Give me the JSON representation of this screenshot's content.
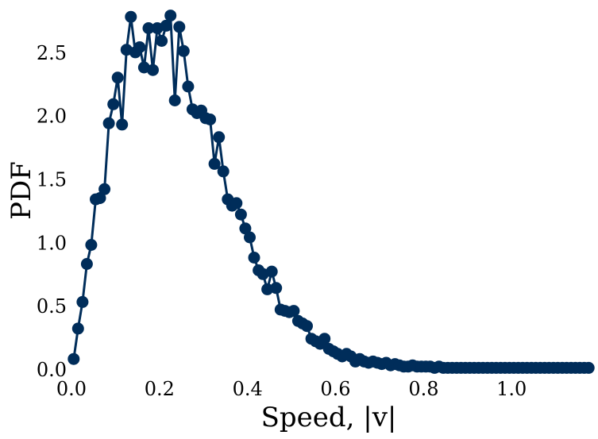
{
  "chart_data": {
    "type": "line",
    "title": "",
    "xlabel": "Speed, |v|",
    "ylabel": "PDF",
    "xlim": [
      0.0,
      1.18
    ],
    "ylim": [
      0.0,
      2.85
    ],
    "xticks": [
      "0.0",
      "0.2",
      "0.4",
      "0.6",
      "0.8",
      "1.0"
    ],
    "xtick_values": [
      0.0,
      0.2,
      0.4,
      0.6,
      0.8,
      1.0
    ],
    "yticks": [
      "0.0",
      "0.5",
      "1.0",
      "1.5",
      "2.0",
      "2.5"
    ],
    "ytick_values": [
      0.0,
      0.5,
      1.0,
      1.5,
      2.0,
      2.5
    ],
    "grid": false,
    "legend": "none",
    "series": [
      {
        "color": "#002d5a",
        "x": [
          0.005,
          0.015,
          0.025,
          0.035,
          0.045,
          0.055,
          0.065,
          0.075,
          0.085,
          0.095,
          0.105,
          0.115,
          0.125,
          0.135,
          0.145,
          0.155,
          0.165,
          0.175,
          0.185,
          0.195,
          0.205,
          0.215,
          0.225,
          0.235,
          0.245,
          0.255,
          0.265,
          0.275,
          0.285,
          0.295,
          0.305,
          0.315,
          0.325,
          0.335,
          0.345,
          0.355,
          0.365,
          0.375,
          0.385,
          0.395,
          0.405,
          0.415,
          0.425,
          0.435,
          0.445,
          0.455,
          0.465,
          0.475,
          0.485,
          0.495,
          0.505,
          0.515,
          0.525,
          0.535,
          0.545,
          0.555,
          0.565,
          0.575,
          0.585,
          0.595,
          0.605,
          0.615,
          0.625,
          0.635,
          0.645,
          0.655,
          0.665,
          0.675,
          0.685,
          0.695,
          0.705,
          0.715,
          0.725,
          0.735,
          0.745,
          0.755,
          0.765,
          0.775,
          0.785,
          0.795,
          0.805,
          0.815,
          0.825,
          0.835,
          0.845,
          0.855,
          0.865,
          0.875,
          0.885,
          0.895,
          0.905,
          0.915,
          0.925,
          0.935,
          0.945,
          0.955,
          0.965,
          0.975,
          0.985,
          0.995,
          1.005,
          1.015,
          1.025,
          1.035,
          1.045,
          1.055,
          1.065,
          1.075,
          1.085,
          1.095,
          1.105,
          1.115,
          1.125,
          1.135,
          1.145,
          1.155,
          1.165,
          1.175
        ],
        "y": [
          0.08,
          0.32,
          0.53,
          0.83,
          0.98,
          1.34,
          1.35,
          1.42,
          1.94,
          2.09,
          2.3,
          1.93,
          2.52,
          2.78,
          2.5,
          2.54,
          2.38,
          2.69,
          2.36,
          2.69,
          2.59,
          2.71,
          2.79,
          2.12,
          2.7,
          2.51,
          2.23,
          2.05,
          2.02,
          2.04,
          1.98,
          1.97,
          1.62,
          1.83,
          1.56,
          1.34,
          1.29,
          1.31,
          1.22,
          1.11,
          1.04,
          0.88,
          0.78,
          0.75,
          0.63,
          0.77,
          0.64,
          0.47,
          0.46,
          0.45,
          0.46,
          0.38,
          0.36,
          0.34,
          0.24,
          0.22,
          0.2,
          0.24,
          0.16,
          0.14,
          0.12,
          0.1,
          0.12,
          0.1,
          0.06,
          0.08,
          0.06,
          0.05,
          0.06,
          0.05,
          0.04,
          0.05,
          0.03,
          0.04,
          0.03,
          0.02,
          0.02,
          0.03,
          0.02,
          0.02,
          0.02,
          0.02,
          0.01,
          0.02,
          0.01,
          0.01,
          0.01,
          0.01,
          0.01,
          0.01,
          0.01,
          0.01,
          0.01,
          0.01,
          0.01,
          0.01,
          0.01,
          0.01,
          0.01,
          0.01,
          0.01,
          0.01,
          0.01,
          0.01,
          0.01,
          0.01,
          0.01,
          0.01,
          0.01,
          0.01,
          0.01,
          0.01,
          0.01,
          0.01,
          0.01,
          0.01,
          0.01,
          0.01
        ]
      }
    ]
  }
}
